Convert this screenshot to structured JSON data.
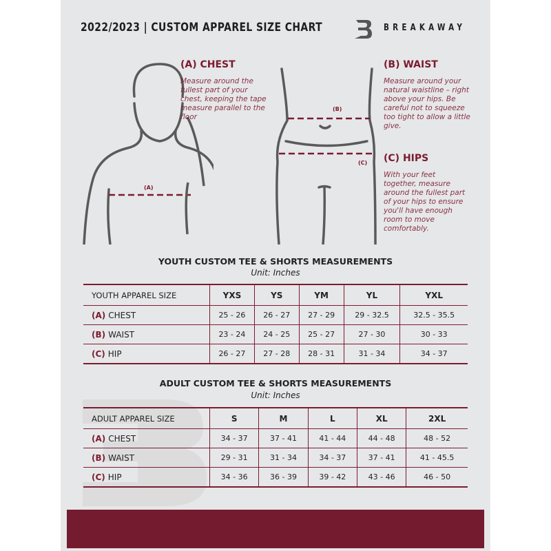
{
  "header": {
    "title": "2022/2023  |  CUSTOM APPAREL SIZE CHART",
    "brand": "BREAKAWAY"
  },
  "colors": {
    "accent": "#7b1b30",
    "background": "#e6e7e8",
    "footer": "#741b30"
  },
  "guide": {
    "chest": {
      "heading": "(A) CHEST",
      "marker": "(A)",
      "description": "Measure around the fullest part of your chest, keeping the tape measure parallel to the floor"
    },
    "waist": {
      "heading": "(B) WAIST",
      "marker": "(B)",
      "description": "Measure around your natural waistline – right above your hips. Be careful not to squeeze too tight to allow a little give."
    },
    "hips": {
      "heading": "(C) HIPS",
      "marker": "(C)",
      "description": "With your feet together, measure around the fullest part of your hips to ensure you'll have enough room to move comfortably."
    }
  },
  "youth": {
    "title": "YOUTH CUSTOM TEE & SHORTS MEASUREMENTS",
    "unit": "Unit: Inches",
    "header": "YOUTH APPAREL SIZE",
    "sizes": [
      "YXS",
      "YS",
      "YM",
      "YL",
      "YXL"
    ],
    "rows": [
      {
        "code": "(A)",
        "name": "CHEST",
        "values": [
          "25 - 26",
          "26 - 27",
          "27 - 29",
          "29 - 32.5",
          "32.5 - 35.5"
        ]
      },
      {
        "code": "(B)",
        "name": "WAIST",
        "values": [
          "23 - 24",
          "24 - 25",
          "25 - 27",
          "27 - 30",
          "30 - 33"
        ]
      },
      {
        "code": "(C)",
        "name": "HIP",
        "values": [
          "26 - 27",
          "27 - 28",
          "28 - 31",
          "31 - 34",
          "34 - 37"
        ]
      }
    ]
  },
  "adult": {
    "title": "ADULT CUSTOM TEE & SHORTS MEASUREMENTS",
    "unit": "Unit: Inches",
    "header": "ADULT APPAREL SIZE",
    "sizes": [
      "S",
      "M",
      "L",
      "XL",
      "2XL"
    ],
    "rows": [
      {
        "code": "(A)",
        "name": "CHEST",
        "values": [
          "34 - 37",
          "37 - 41",
          "41 - 44",
          "44 - 48",
          "48 - 52"
        ]
      },
      {
        "code": "(B)",
        "name": "WAIST",
        "values": [
          "29 - 31",
          "31 - 34",
          "34 - 37",
          "37 - 41",
          "41 - 45.5"
        ]
      },
      {
        "code": "(C)",
        "name": "HIP",
        "values": [
          "34 - 36",
          "36 - 39",
          "39 - 42",
          "43 - 46",
          "46 - 50"
        ]
      }
    ]
  }
}
